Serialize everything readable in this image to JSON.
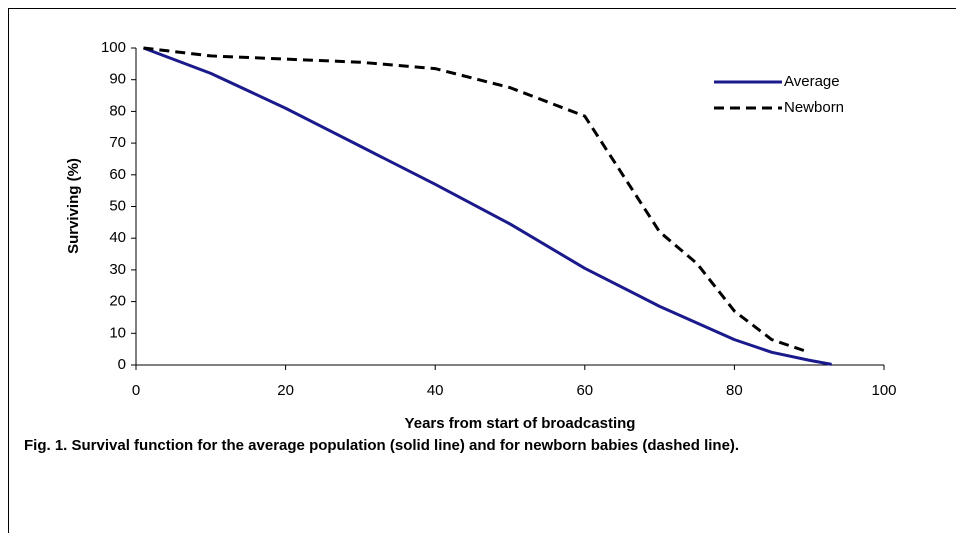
{
  "chart_data": {
    "type": "line",
    "xlabel": "Years from start of broadcasting",
    "ylabel": "Surviving (%)",
    "caption": "Fig. 1. Survival function for the average population (solid line) and for newborn babies (dashed line).",
    "xlim": [
      0,
      100
    ],
    "xticks": [
      0,
      20,
      40,
      60,
      80,
      100
    ],
    "ylim": [
      0,
      100
    ],
    "yticks": [
      0,
      10,
      20,
      30,
      40,
      50,
      60,
      70,
      80,
      90,
      100
    ],
    "legend": "top-right",
    "series": [
      {
        "name": "Average",
        "color": "#1a1a8c",
        "dash": false,
        "x": [
          1,
          10,
          20,
          30,
          40,
          50,
          60,
          70,
          80,
          85,
          90,
          93
        ],
        "values": [
          100,
          92,
          81,
          69,
          57,
          44.5,
          30.5,
          18.5,
          8,
          4,
          1.5,
          0.2
        ]
      },
      {
        "name": "Newborn",
        "color": "#000000",
        "dash": true,
        "x": [
          1,
          10,
          20,
          30,
          40,
          50,
          60,
          70,
          75,
          80,
          85,
          90
        ],
        "values": [
          100,
          97.5,
          96.5,
          95.5,
          93.5,
          87.5,
          78.5,
          42,
          32,
          17,
          8,
          4
        ]
      }
    ]
  }
}
